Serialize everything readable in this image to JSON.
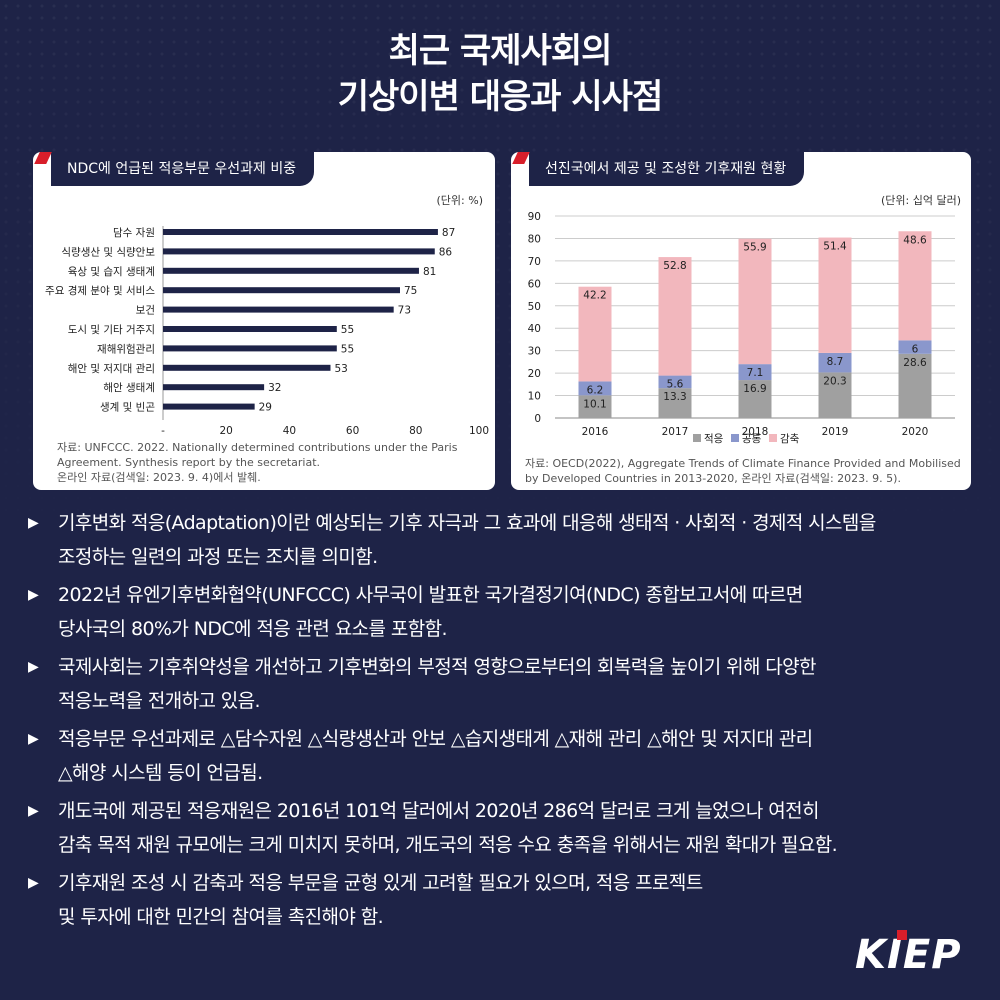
{
  "title": {
    "line1": "최근 국제사회의",
    "line2": "기상이변 대응과 시사점"
  },
  "left_panel": {
    "tab_label": "NDC에 언급된 적응부문 우선과제 비중",
    "unit": "(단위: %)",
    "source_lines": [
      "자료: UNFCCC. 2022. Nationally determined contributions under the Paris",
      "Agreement. Synthesis report by the secretariat.",
      "온라인 자료(검색일: 2023. 9. 4)에서 발췌."
    ]
  },
  "right_panel": {
    "tab_label": "선진국에서 제공 및 조성한 기후재원 현황",
    "unit": "(단위: 십억 달러)",
    "source_lines": [
      "자료: OECD(2022), Aggregate Trends of Climate Finance Provided and Mobilised",
      "by Developed Countries in 2013-2020, 온라인 자료(검색일: 2023. 9. 5)."
    ]
  },
  "chart_data": [
    {
      "type": "bar",
      "orientation": "horizontal",
      "categories": [
        "담수 자원",
        "식량생산 및 식량안보",
        "육상 및 습지 생태계",
        "주요 경제 분야 및 서비스",
        "보건",
        "도시 및 기타 거주지",
        "재해위험관리",
        "해안 및 저지대 관리",
        "해안 생태계",
        "생계 및 빈곤"
      ],
      "values": [
        87,
        86,
        81,
        75,
        73,
        55,
        55,
        53,
        32,
        29
      ],
      "xlim": [
        0,
        100
      ],
      "xticks": [
        "-",
        "20",
        "40",
        "60",
        "80",
        "100"
      ],
      "color": "#1e2347",
      "grid": false
    },
    {
      "type": "bar",
      "stacked": true,
      "categories": [
        "2016",
        "2017",
        "2018",
        "2019",
        "2020"
      ],
      "series": [
        {
          "name": "적응",
          "values": [
            10.1,
            13.3,
            16.9,
            20.3,
            28.6
          ],
          "color": "#a0a0a0"
        },
        {
          "name": "공통",
          "values": [
            6.2,
            5.6,
            7.1,
            8.7,
            6
          ],
          "color": "#8a97cc"
        },
        {
          "name": "감축",
          "values": [
            42.2,
            52.8,
            55.9,
            51.4,
            48.6
          ],
          "color": "#f2b7bd"
        }
      ],
      "ylim": [
        0,
        90
      ],
      "yticks": [
        "0",
        "10",
        "20",
        "30",
        "40",
        "50",
        "60",
        "70",
        "80",
        "90"
      ],
      "grid": true,
      "legend_position": "bottom"
    }
  ],
  "bullets": [
    [
      "기후변화 적응(Adaptation)이란 예상되는 기후 자극과 그 효과에 대응해 생태적 · 사회적 · 경제적 시스템을",
      "조정하는 일련의 과정 또는 조치를 의미함."
    ],
    [
      "2022년 유엔기후변화협약(UNFCCC) 사무국이 발표한 국가결정기여(NDC) 종합보고서에 따르면",
      "당사국의 80%가 NDC에 적응 관련 요소를 포함함."
    ],
    [
      "국제사회는 기후취약성을 개선하고 기후변화의 부정적 영향으로부터의 회복력을 높이기 위해 다양한",
      "적응노력을 전개하고 있음."
    ],
    [
      "적응부문 우선과제로 △담수자원 △식량생산과 안보 △습지생태계 △재해 관리 △해안 및 저지대 관리",
      "△해양 시스템 등이 언급됨."
    ],
    [
      "개도국에 제공된 적응재원은 2016년 101억 달러에서 2020년 286억 달러로 크게 늘었으나 여전히",
      "감축 목적 재원 규모에는 크게 미치지 못하며, 개도국의 적응 수요 충족을 위해서는 재원 확대가 필요함."
    ],
    [
      "기후재원 조성 시 감축과 적응 부문을 균형 있게 고려할 필요가 있으며, 적응 프로젝트",
      "및 투자에 대한 민간의 참여를 촉진해야 함."
    ]
  ],
  "bullet_marker": "▶",
  "logo_text": "KIEP"
}
